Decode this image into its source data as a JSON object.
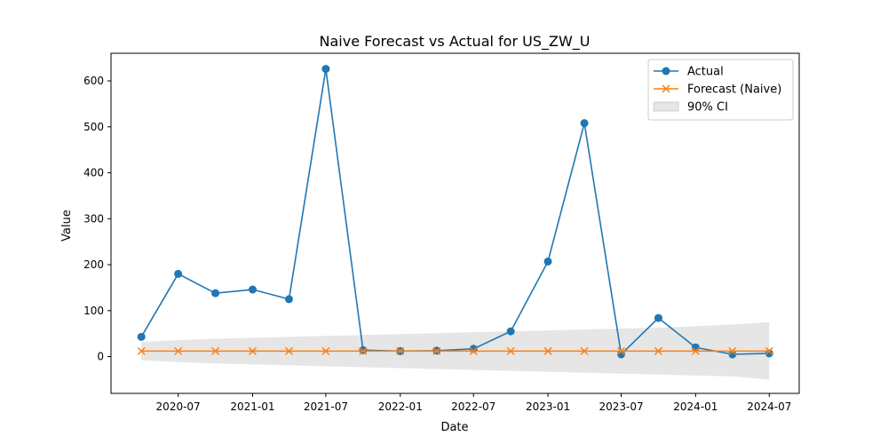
{
  "chart_data": {
    "type": "line",
    "title": "Naive Forecast vs Actual for US_ZW_U",
    "xlabel": "Date",
    "ylabel": "Value",
    "x": [
      "2020-04-01",
      "2020-07-01",
      "2020-10-01",
      "2021-01-01",
      "2021-04-01",
      "2021-07-01",
      "2021-10-01",
      "2022-01-01",
      "2022-04-01",
      "2022-07-01",
      "2022-10-01",
      "2023-01-01",
      "2023-04-01",
      "2023-07-01",
      "2023-10-01",
      "2024-01-01",
      "2024-04-01",
      "2024-07-01"
    ],
    "xlim": [
      "2020-01-17",
      "2024-09-13"
    ],
    "ylim": [
      -80,
      660
    ],
    "x_ticks": [
      {
        "date": "2020-07-01",
        "label": "2020-07"
      },
      {
        "date": "2021-01-01",
        "label": "2021-01"
      },
      {
        "date": "2021-07-01",
        "label": "2021-07"
      },
      {
        "date": "2022-01-01",
        "label": "2022-01"
      },
      {
        "date": "2022-07-01",
        "label": "2022-07"
      },
      {
        "date": "2023-01-01",
        "label": "2023-01"
      },
      {
        "date": "2023-07-01",
        "label": "2023-07"
      },
      {
        "date": "2024-01-01",
        "label": "2024-01"
      },
      {
        "date": "2024-07-01",
        "label": "2024-07"
      }
    ],
    "y_ticks": [
      0,
      100,
      200,
      300,
      400,
      500,
      600
    ],
    "grid": false,
    "legend_position": "top-right",
    "series": [
      {
        "name": "Actual",
        "marker": "circle",
        "color": "#1f77b4",
        "values": [
          43,
          180,
          138,
          146,
          125,
          626,
          14,
          12,
          13,
          17,
          55,
          207,
          508,
          5,
          84,
          20,
          5,
          7
        ]
      },
      {
        "name": "Forecast (Naive)",
        "marker": "x",
        "color": "#ff7f0e",
        "values": [
          12,
          12,
          12,
          12,
          12,
          12,
          12,
          12,
          12,
          12,
          12,
          12,
          12,
          12,
          12,
          12,
          12,
          12
        ]
      }
    ],
    "interval": {
      "name": "90% CI",
      "color": "#808080",
      "lower": [
        -8,
        -12,
        -15,
        -17,
        -19,
        -21,
        -23,
        -25,
        -27,
        -29,
        -31,
        -33,
        -35,
        -37,
        -39,
        -41,
        -43,
        -50
      ],
      "upper": [
        32,
        36,
        39,
        41,
        43,
        45,
        47,
        49,
        51,
        53,
        55,
        57,
        59,
        61,
        63,
        66,
        70,
        75
      ]
    }
  }
}
